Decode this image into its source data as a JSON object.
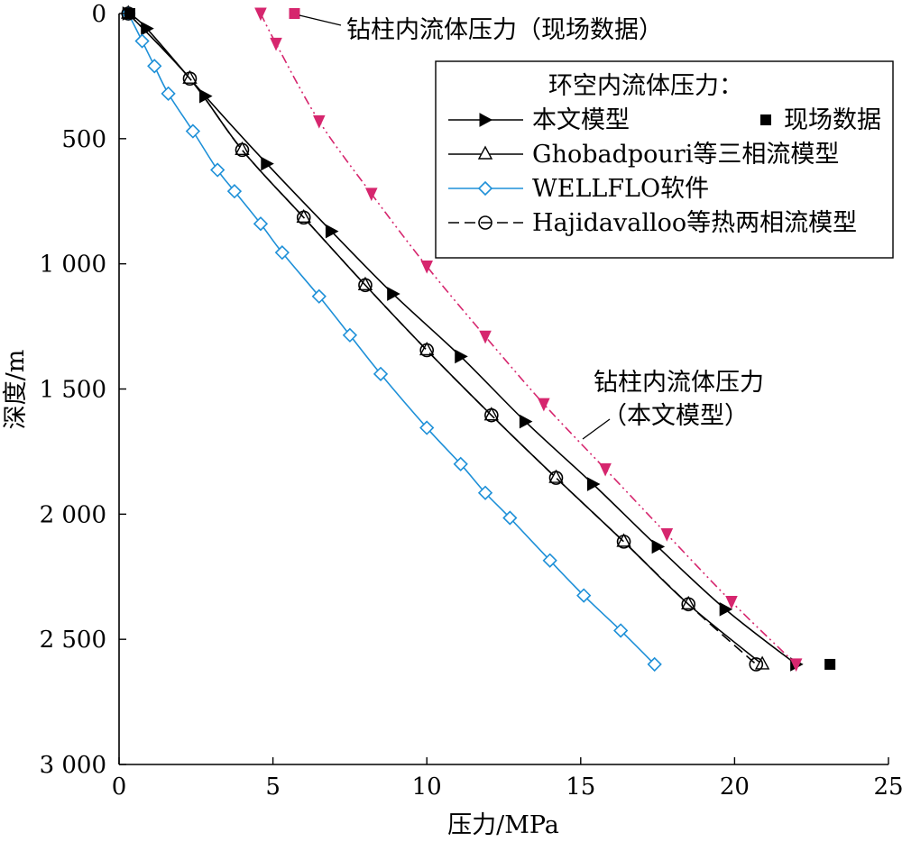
{
  "chart_data": {
    "type": "line",
    "xlabel": "压力/MPa",
    "ylabel": "深度/m",
    "xlim": [
      0,
      25
    ],
    "ylim": [
      0,
      3000
    ],
    "y_inverted": true,
    "grid": false,
    "legend_placement": "top-right",
    "legend_title": "环空内流体压力：",
    "x_ticks": [
      {
        "value": 0,
        "label": "0"
      },
      {
        "value": 5,
        "label": "5"
      },
      {
        "value": 10,
        "label": "10"
      },
      {
        "value": 15,
        "label": "15"
      },
      {
        "value": 20,
        "label": "20"
      },
      {
        "value": 25,
        "label": "25"
      }
    ],
    "y_ticks": [
      {
        "value": 0,
        "label": "0"
      },
      {
        "value": 500,
        "label": "500"
      },
      {
        "value": 1000,
        "label": "1 000"
      },
      {
        "value": 1500,
        "label": "1 500"
      },
      {
        "value": 2000,
        "label": "2 000"
      },
      {
        "value": 2500,
        "label": "2 500"
      },
      {
        "value": 3000,
        "label": "3 000"
      }
    ],
    "series": [
      {
        "key": "this_model",
        "name": "本文模型",
        "color": "#000000",
        "marker": "triangle-right-filled",
        "dash": "",
        "x": [
          0.3,
          0.9,
          2.8,
          4.8,
          6.9,
          8.9,
          11.1,
          13.2,
          15.4,
          17.5,
          19.7,
          22.0
        ],
        "y": [
          0,
          60,
          330,
          600,
          870,
          1120,
          1370,
          1630,
          1880,
          2130,
          2380,
          2600
        ]
      },
      {
        "key": "ghobadpouri",
        "name": "Ghobadpouri等三相流模型",
        "color": "#000000",
        "marker": "triangle-up-open",
        "dash": "",
        "x": [
          0.3,
          2.3,
          4.0,
          6.0,
          8.0,
          10.0,
          12.1,
          14.2,
          16.4,
          18.5,
          20.9
        ],
        "y": [
          0,
          260,
          545,
          815,
          1085,
          1345,
          1605,
          1855,
          2110,
          2360,
          2600
        ]
      },
      {
        "key": "wellflo",
        "name": "WELLFLO软件",
        "color": "#1e90d8",
        "marker": "diamond-open",
        "dash": "",
        "x": [
          0.3,
          0.75,
          1.15,
          1.6,
          2.4,
          3.2,
          3.75,
          4.6,
          5.3,
          6.5,
          7.5,
          8.5,
          10.0,
          11.1,
          11.9,
          12.7,
          14.0,
          15.1,
          16.3,
          17.4
        ],
        "y": [
          0,
          110,
          210,
          320,
          470,
          625,
          710,
          840,
          955,
          1130,
          1285,
          1440,
          1655,
          1800,
          1915,
          2015,
          2185,
          2325,
          2465,
          2600
        ]
      },
      {
        "key": "hajidavalloo",
        "name": "Hajidavalloo等热两相流模型",
        "color": "#000000",
        "marker": "circle-open",
        "dash": "12,6",
        "x": [
          0.3,
          2.3,
          4.0,
          6.0,
          8.0,
          10.0,
          12.1,
          14.2,
          16.4,
          18.5,
          20.7
        ],
        "y": [
          0,
          260,
          545,
          815,
          1085,
          1345,
          1605,
          1855,
          2110,
          2360,
          2600
        ]
      },
      {
        "key": "drill_string",
        "color": "#d6266e",
        "marker": "triangle-down-filled",
        "dash": "10,4,2,4,2,4",
        "x": [
          4.6,
          5.1,
          6.5,
          8.2,
          10.0,
          11.9,
          13.8,
          15.8,
          17.8,
          19.9,
          22.0
        ],
        "y": [
          0,
          120,
          430,
          720,
          1010,
          1290,
          1560,
          1820,
          2080,
          2350,
          2600
        ]
      }
    ],
    "field_data": [
      {
        "key": "annulus_field",
        "name": "现场数据",
        "color": "#000000",
        "marker": "square-filled",
        "x": [
          0.35,
          23.1
        ],
        "y": [
          0,
          2600
        ]
      },
      {
        "key": "drill_field",
        "color": "#d6266e",
        "marker": "square-filled",
        "x": [
          5.7
        ],
        "y": [
          0
        ]
      }
    ],
    "annotations": [
      {
        "key": "drill_field_note",
        "text": "钻柱内流体压力（现场数据）"
      },
      {
        "key": "drill_model_note_line1",
        "text": "钻柱内流体压力"
      },
      {
        "key": "drill_model_note_line2",
        "text": "（本文模型）"
      }
    ]
  }
}
